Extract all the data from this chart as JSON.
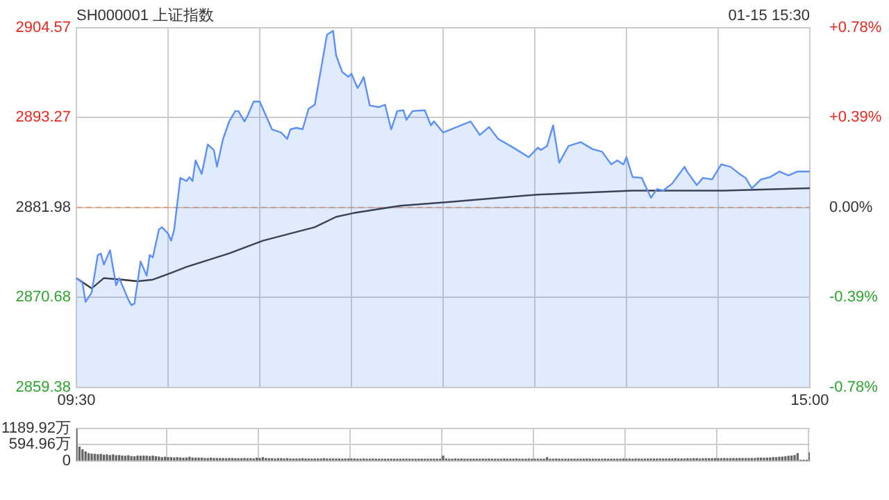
{
  "chart_data": [
    {
      "type": "area",
      "title": "SH000001 上证指数",
      "annotations": [
        "01-15 15:30"
      ],
      "categories": [
        "09:30",
        null,
        null,
        null,
        null,
        null,
        null,
        null,
        null,
        null,
        null,
        null,
        null,
        null,
        null,
        null,
        null,
        null,
        null,
        null,
        null,
        null,
        null,
        null,
        null,
        null,
        null,
        null,
        null,
        null,
        null,
        null,
        null,
        null,
        null,
        null,
        null,
        null,
        null,
        null,
        null,
        null,
        null,
        null,
        null,
        null,
        null,
        null,
        null,
        null,
        null,
        null,
        null,
        null,
        null,
        null,
        null,
        null,
        null,
        null,
        null,
        null,
        null,
        null,
        null,
        null,
        null,
        null,
        null,
        null,
        null,
        null,
        null,
        null,
        null,
        null,
        null,
        null,
        null,
        null,
        null,
        null,
        null,
        null,
        null,
        null,
        null,
        null,
        null,
        null,
        null,
        null,
        null,
        null,
        null,
        null,
        null,
        null,
        null,
        null,
        null,
        null,
        null,
        null,
        null,
        null,
        null,
        null,
        null,
        null,
        null,
        null,
        null,
        null,
        null,
        null,
        null,
        null,
        null,
        null,
        null,
        null,
        null,
        null,
        null,
        null,
        null,
        null,
        null,
        null,
        null,
        null,
        null,
        null,
        null,
        null,
        null,
        null,
        null,
        null,
        null,
        null,
        null,
        null,
        null,
        null,
        null,
        null,
        null,
        null,
        null,
        null,
        null,
        null,
        null,
        null,
        null,
        null,
        null,
        null,
        null,
        null,
        null,
        null,
        null,
        null,
        null,
        null,
        null,
        null,
        null,
        null,
        null,
        null,
        null,
        null,
        null,
        null,
        null,
        null,
        null,
        null,
        null,
        null,
        null,
        null,
        null,
        null,
        null,
        null,
        null,
        null,
        null,
        null,
        null,
        null,
        null,
        null,
        null,
        null,
        null,
        null,
        null,
        null,
        null,
        null,
        null,
        null,
        null,
        null,
        null,
        null,
        null,
        null,
        null,
        null,
        null,
        null,
        null,
        null,
        null,
        null,
        null,
        null,
        null,
        null,
        null,
        null,
        null,
        null,
        null,
        null,
        null,
        null,
        null,
        null,
        null,
        null,
        null,
        null,
        "15:00"
      ],
      "ylim": [
        2859.38,
        2904.57
      ],
      "yticks": [
        2859.38,
        2870.68,
        2881.98,
        2893.27,
        2904.57
      ],
      "y2lim": [
        -0.78,
        0.78
      ],
      "y2ticks": [
        {
          "value": -0.78,
          "label": "-0.78%"
        },
        {
          "value": -0.39,
          "label": "-0.39%"
        },
        {
          "value": 0,
          "label": "0.00%"
        },
        {
          "value": 0.39,
          "label": "+0.39%"
        },
        {
          "value": 0.78,
          "label": "+0.78%"
        }
      ],
      "grid": true,
      "marker": "none",
      "ref_lines": [
        {
          "axis": "y",
          "value": 2881.98,
          "color": "#e8a07a",
          "line_style": "dashed"
        }
      ],
      "series": [
        {
          "type": "area",
          "color": "#5b8ff9",
          "values": [
            2873.1,
            null,
            2872.5,
            2870.1,
            null,
            2871.3,
            null,
            2876.0,
            2876.2,
            2874.8,
            null,
            2876.6,
            null,
            2872.2,
            2873.1,
            null,
            null,
            2870.4,
            2869.7,
            2869.9,
            null,
            2875.2,
            null,
            2873.4,
            2876.0,
            2875.7,
            null,
            2879.2,
            2879.5,
            null,
            2878.7,
            2877.8,
            2879.2,
            null,
            2885.7,
            null,
            2885.3,
            2885.8,
            2885.3,
            2887.9,
            null,
            2886.2,
            null,
            2889.9,
            null,
            2889.2,
            2887.1,
            null,
            2890.6,
            null,
            2892.8,
            null,
            2894.1,
            2894.1,
            null,
            2892.8,
            2893.5,
            null,
            2895.3,
            null,
            2895.3,
            null,
            null,
            null,
            2891.8,
            null,
            null,
            2891.4,
            null,
            2890.6,
            2891.8,
            null,
            2892.0,
            null,
            2891.8,
            null,
            2894.4,
            null,
            2894.9,
            null,
            2899.3,
            null,
            2903.7,
            null,
            2904.2,
            2901.1,
            null,
            2899.0,
            null,
            2898.4,
            2898.8,
            null,
            2897.0,
            2897.6,
            2898.4,
            null,
            2894.8,
            null,
            null,
            2894.6,
            null,
            2894.9,
            null,
            2891.8,
            null,
            2894.1,
            null,
            2894.2,
            2893.0,
            null,
            2894.1,
            null,
            null,
            null,
            2894.2,
            null,
            2892.3,
            2892.8,
            null,
            null,
            2891.4,
            null,
            null,
            null,
            null,
            null,
            null,
            null,
            null,
            2892.8,
            null,
            null,
            2891.1,
            null,
            null,
            2892.1,
            null,
            null,
            2890.6,
            null,
            null,
            null,
            null,
            2889.5,
            null,
            null,
            null,
            null,
            2888.3,
            null,
            null,
            2889.5,
            2889.2,
            null,
            2889.7,
            null,
            2892.3,
            null,
            2887.6,
            null,
            null,
            2889.7,
            null,
            null,
            null,
            2890.2,
            null,
            null,
            null,
            2889.3,
            null,
            null,
            2889.0,
            null,
            null,
            2887.4,
            null,
            2887.9,
            null,
            2887.4,
            2888.3,
            null,
            2885.8,
            null,
            null,
            2885.7,
            null,
            null,
            2883.2,
            null,
            2884.3,
            null,
            2884.1,
            null,
            null,
            2885.0,
            null,
            null,
            null,
            2887.1,
            2886.4,
            null,
            null,
            2884.8,
            null,
            2885.7,
            null,
            null,
            2885.5,
            null,
            null,
            2887.4,
            null,
            null,
            2887.1,
            null,
            null,
            2886.2,
            null,
            2885.7,
            null,
            2884.4,
            null,
            null,
            2885.5,
            null,
            null,
            2885.8,
            null,
            null,
            2886.5,
            null,
            null,
            2886.0,
            null,
            null,
            2886.5,
            null,
            null,
            null,
            2886.5
          ]
        },
        {
          "type": "line",
          "color": "#333333",
          "values": [
            2873.1,
            null,
            null,
            null,
            null,
            2871.8,
            null,
            null,
            null,
            2873.1,
            null,
            null,
            null,
            null,
            null,
            2872.9,
            null,
            null,
            null,
            null,
            2872.7,
            null,
            null,
            null,
            null,
            2872.9,
            null,
            null,
            null,
            null,
            2873.6,
            null,
            null,
            null,
            null,
            null,
            2874.5,
            null,
            null,
            null,
            null,
            null,
            null,
            null,
            null,
            null,
            null,
            null,
            null,
            null,
            2876.2,
            null,
            null,
            null,
            null,
            null,
            null,
            null,
            null,
            null,
            null,
            2877.8,
            null,
            null,
            null,
            null,
            null,
            null,
            null,
            null,
            null,
            null,
            null,
            null,
            null,
            null,
            null,
            null,
            2879.5,
            null,
            null,
            null,
            null,
            null,
            null,
            2880.8,
            null,
            null,
            null,
            null,
            null,
            2881.3,
            null,
            null,
            null,
            null,
            null,
            null,
            null,
            null,
            null,
            null,
            null,
            null,
            null,
            null,
            2882.2,
            null,
            null,
            null,
            null,
            null,
            null,
            null,
            null,
            null,
            null,
            null,
            null,
            null,
            null,
            null,
            null,
            2882.7,
            null,
            null,
            null,
            null,
            null,
            null,
            null,
            null,
            null,
            null,
            null,
            null,
            null,
            null,
            null,
            null,
            null,
            null,
            null,
            null,
            null,
            null,
            null,
            null,
            null,
            null,
            null,
            2883.6,
            null,
            null,
            null,
            null,
            null,
            null,
            null,
            null,
            null,
            null,
            null,
            null,
            null,
            null,
            null,
            null,
            null,
            null,
            null,
            null,
            null,
            null,
            null,
            null,
            null,
            null,
            null,
            null,
            null,
            null,
            2884.1,
            null,
            null,
            null,
            null,
            null,
            null,
            null,
            null,
            null,
            null,
            null,
            null,
            null,
            null,
            null,
            null,
            null,
            null,
            null,
            null,
            null,
            null,
            null,
            null,
            null,
            null,
            null,
            null,
            null,
            2884.1,
            null,
            null,
            null,
            null,
            null,
            null,
            null,
            null,
            null,
            null,
            null,
            null,
            null,
            null,
            null,
            null,
            null,
            null,
            null,
            null,
            null,
            null,
            null,
            null,
            null,
            null,
            null,
            2884.4
          ]
        }
      ]
    },
    {
      "type": "bar",
      "grid": true,
      "categories": [
        null,
        null,
        null,
        null,
        null,
        null,
        null,
        null,
        null,
        null,
        null,
        null,
        null,
        null,
        null,
        null,
        null,
        null,
        null,
        null,
        null,
        null,
        null,
        null,
        null,
        null,
        null,
        null,
        null,
        null,
        null,
        null,
        null,
        null,
        null,
        null,
        null,
        null,
        null,
        null,
        null,
        null,
        null,
        null,
        null,
        null,
        null,
        null,
        null,
        null,
        null,
        null,
        null,
        null,
        null,
        null,
        null,
        null,
        null,
        null,
        null,
        null,
        null,
        null,
        null,
        null,
        null,
        null,
        null,
        null,
        null,
        null,
        null,
        null,
        null,
        null,
        null,
        null,
        null,
        null,
        null,
        null,
        null,
        null,
        null,
        null,
        null,
        null,
        null,
        null,
        null,
        null,
        null,
        null,
        null,
        null,
        null,
        null,
        null,
        null,
        null,
        null,
        null,
        null,
        null,
        null,
        null,
        null,
        null,
        null,
        null,
        null,
        null,
        null,
        null,
        null,
        null,
        null,
        null,
        null,
        null,
        null,
        null,
        null,
        null,
        null,
        null,
        null,
        null,
        null,
        null,
        null,
        null,
        null,
        null,
        null,
        null,
        null,
        null,
        null,
        null,
        null,
        null,
        null,
        null,
        null,
        null,
        null,
        null,
        null,
        null,
        null,
        null,
        null,
        null,
        null,
        null,
        null,
        null,
        null,
        null,
        null,
        null,
        null,
        null,
        null,
        null,
        null,
        null,
        null,
        null,
        null,
        null,
        null,
        null,
        null,
        null,
        null,
        null,
        null,
        null,
        null,
        null,
        null,
        null,
        null,
        null,
        null,
        null,
        null,
        null,
        null,
        null,
        null,
        null,
        null,
        null,
        null,
        null,
        null,
        null,
        null,
        null,
        null,
        null,
        null,
        null,
        null,
        null,
        null,
        null,
        null,
        null,
        null,
        null,
        null,
        null,
        null,
        null,
        null,
        null,
        null,
        null,
        null,
        null,
        null,
        null,
        null,
        null,
        null,
        null,
        null,
        null,
        null,
        null,
        null,
        null,
        null,
        null,
        null,
        null
      ],
      "ylim": [
        0,
        1189.92
      ],
      "yticks": [
        0,
        {
          "value": 594.96,
          "label": "594.96万"
        },
        {
          "value": 1189.92,
          "label": "1189.92万"
        }
      ],
      "color": "#666666",
      "values": [
        1180,
        510,
        410,
        330,
        270,
        250,
        240,
        230,
        240,
        210,
        220,
        200,
        220,
        190,
        200,
        180,
        170,
        190,
        160,
        150,
        180,
        170,
        180,
        170,
        160,
        180,
        150,
        140,
        120,
        130,
        120,
        120,
        110,
        120,
        110,
        100,
        110,
        130,
        110,
        100,
        100,
        100,
        90,
        90,
        100,
        90,
        90,
        90,
        90,
        80,
        90,
        90,
        80,
        80,
        80,
        90,
        80,
        80,
        70,
        100,
        90,
        120,
        90,
        80,
        80,
        70,
        80,
        80,
        70,
        80,
        70,
        70,
        70,
        70,
        80,
        70,
        70,
        70,
        70,
        70,
        70,
        80,
        70,
        70,
        70,
        70,
        70,
        60,
        70,
        70,
        70,
        70,
        60,
        60,
        70,
        60,
        60,
        70,
        60,
        60,
        60,
        60,
        60,
        60,
        60,
        60,
        60,
        60,
        60,
        60,
        60,
        60,
        60,
        60,
        60,
        60,
        60,
        60,
        60,
        60,
        180,
        70,
        60,
        60,
        70,
        60,
        70,
        60,
        60,
        60,
        60,
        60,
        60,
        70,
        60,
        70,
        60,
        60,
        60,
        60,
        70,
        60,
        60,
        60,
        70,
        60,
        60,
        60,
        70,
        60,
        60,
        60,
        60,
        60,
        120,
        60,
        60,
        70,
        60,
        60,
        60,
        60,
        60,
        60,
        60,
        60,
        60,
        70,
        60,
        60,
        60,
        60,
        60,
        70,
        60,
        60,
        60,
        60,
        60,
        70,
        60,
        70,
        60,
        70,
        70,
        60,
        70,
        70,
        70,
        70,
        70,
        70,
        70,
        70,
        70,
        70,
        80,
        70,
        70,
        70,
        80,
        70,
        80,
        80,
        70,
        80,
        80,
        80,
        80,
        80,
        80,
        80,
        90,
        80,
        80,
        90,
        80,
        90,
        90,
        90,
        90,
        90,
        90,
        100,
        100,
        100,
        100,
        110,
        120,
        120,
        130,
        140,
        150,
        170,
        180,
        200,
        270,
        10,
        10,
        10,
        300
      ]
    }
  ]
}
